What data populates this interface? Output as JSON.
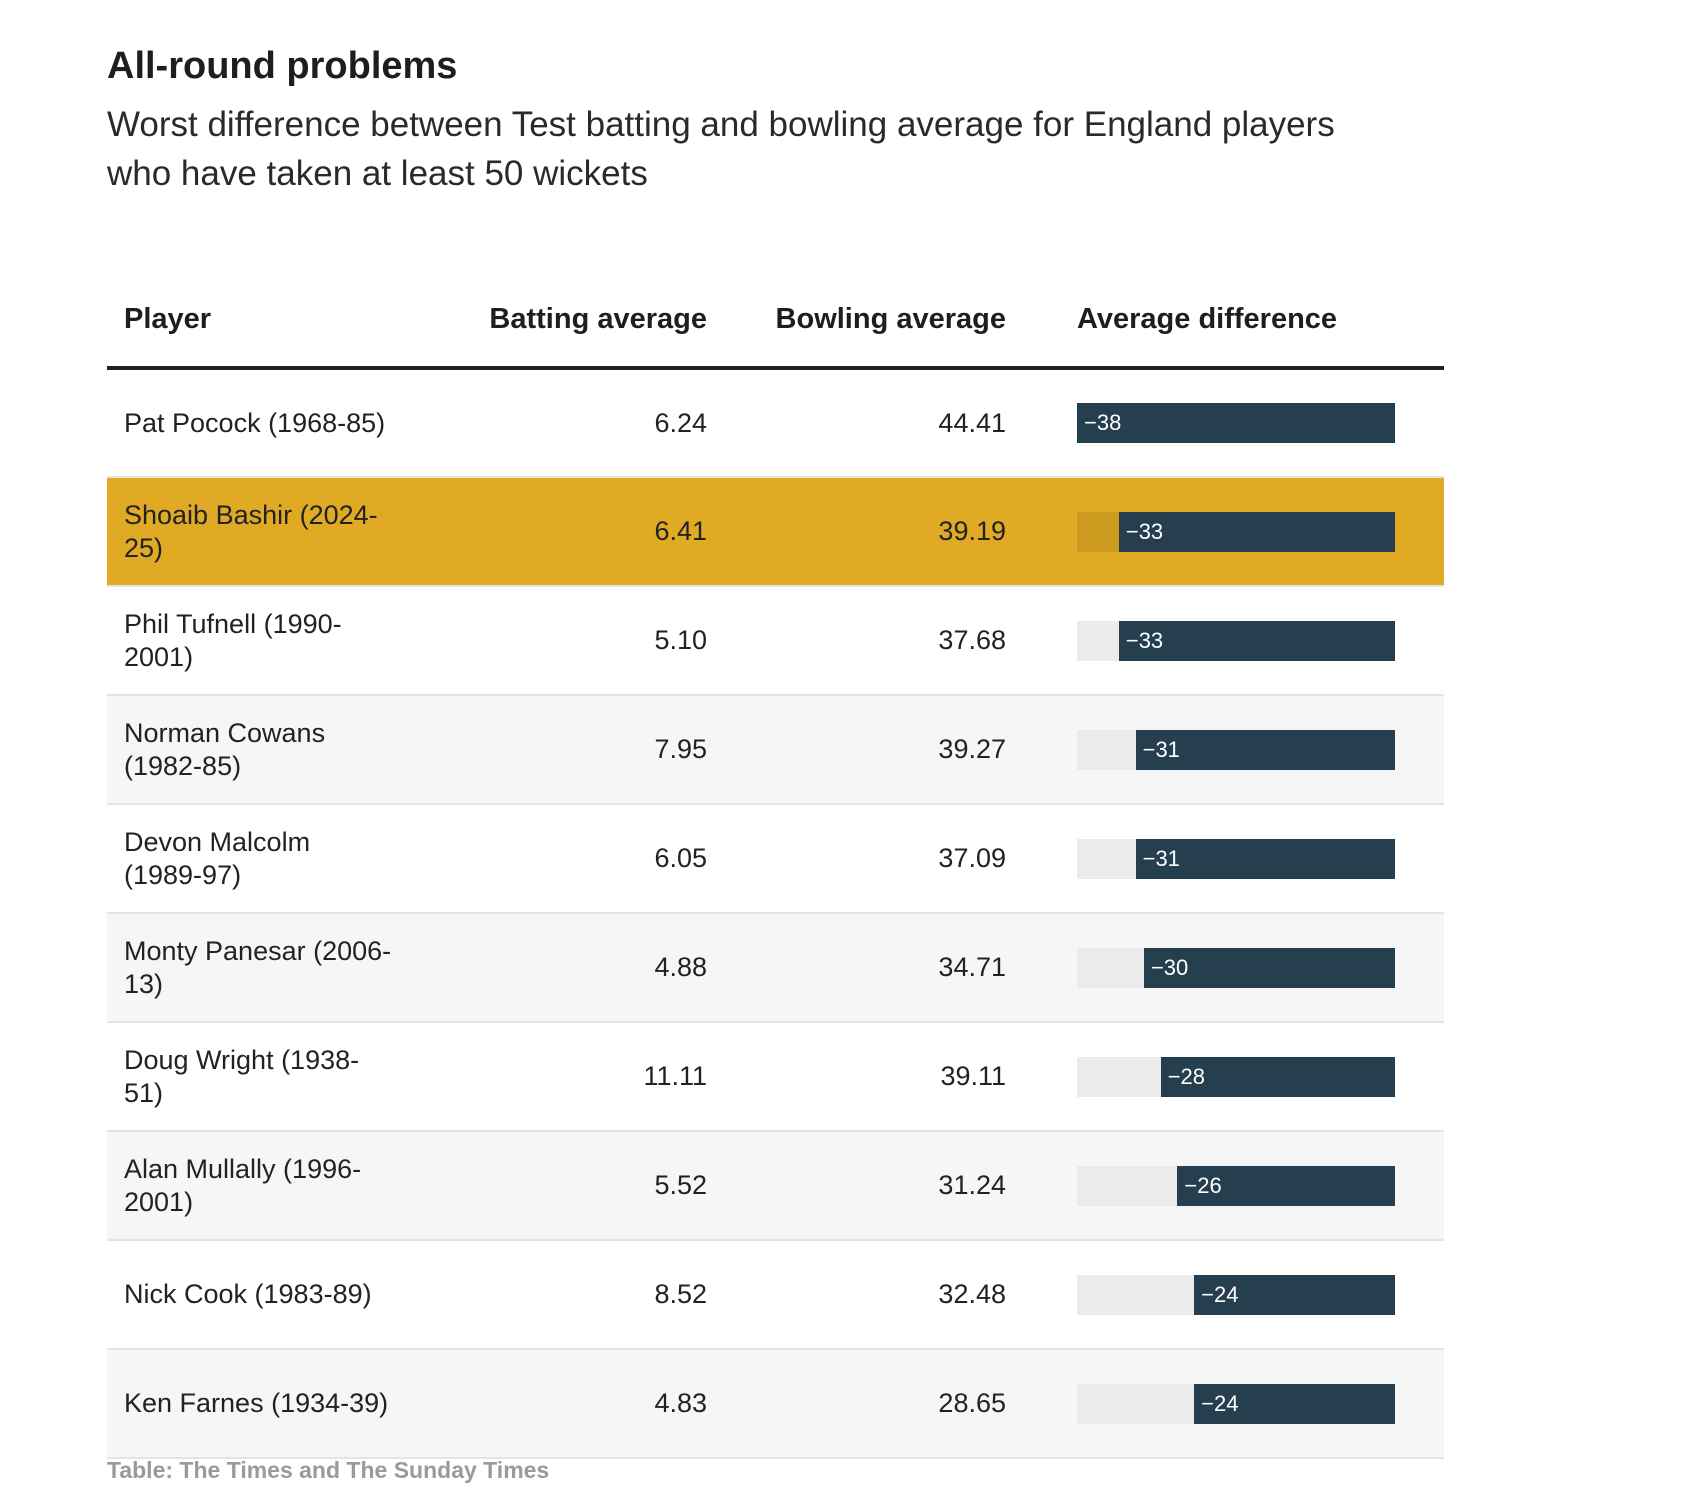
{
  "title": "All-round problems",
  "subtitle": "Worst difference between Test batting and bowling average for England players who have taken at least 50 wickets",
  "source": "Table: The Times and The Sunday Times",
  "colors": {
    "bar_fill": "#253f4f",
    "bar_track": "#ebebeb",
    "highlight_row": "#e0aa24",
    "highlight_track": "#cb9a1f",
    "alt_row": "#f6f6f6"
  },
  "chart_data": {
    "type": "table",
    "title": "All-round problems",
    "subtitle": "Worst difference between Test batting and bowling average for England players who have taken at least 50 wickets",
    "columns": [
      "Player",
      "Batting average",
      "Bowling average",
      "Average difference"
    ],
    "bar_scale_max": 38,
    "highlighted_row": 1,
    "rows": [
      {
        "player": "Pat Pocock (1968-85)",
        "batting": "6.24",
        "bowling": "44.41",
        "difference": -38,
        "difference_label": "−38"
      },
      {
        "player": "Shoaib Bashir (2024-25)",
        "batting": "6.41",
        "bowling": "39.19",
        "difference": -33,
        "difference_label": "−33"
      },
      {
        "player": "Phil Tufnell (1990-2001)",
        "batting": "5.10",
        "bowling": "37.68",
        "difference": -33,
        "difference_label": "−33"
      },
      {
        "player": "Norman Cowans (1982-85)",
        "batting": "7.95",
        "bowling": "39.27",
        "difference": -31,
        "difference_label": "−31"
      },
      {
        "player": "Devon Malcolm (1989-97)",
        "batting": "6.05",
        "bowling": "37.09",
        "difference": -31,
        "difference_label": "−31"
      },
      {
        "player": "Monty Panesar (2006-13)",
        "batting": "4.88",
        "bowling": "34.71",
        "difference": -30,
        "difference_label": "−30"
      },
      {
        "player": "Doug Wright (1938-51)",
        "batting": "11.11",
        "bowling": "39.11",
        "difference": -28,
        "difference_label": "−28"
      },
      {
        "player": "Alan Mullally (1996-2001)",
        "batting": "5.52",
        "bowling": "31.24",
        "difference": -26,
        "difference_label": "−26"
      },
      {
        "player": "Nick Cook (1983-89)",
        "batting": "8.52",
        "bowling": "32.48",
        "difference": -24,
        "difference_label": "−24"
      },
      {
        "player": "Ken Farnes (1934-39)",
        "batting": "4.83",
        "bowling": "28.65",
        "difference": -24,
        "difference_label": "−24"
      }
    ]
  }
}
